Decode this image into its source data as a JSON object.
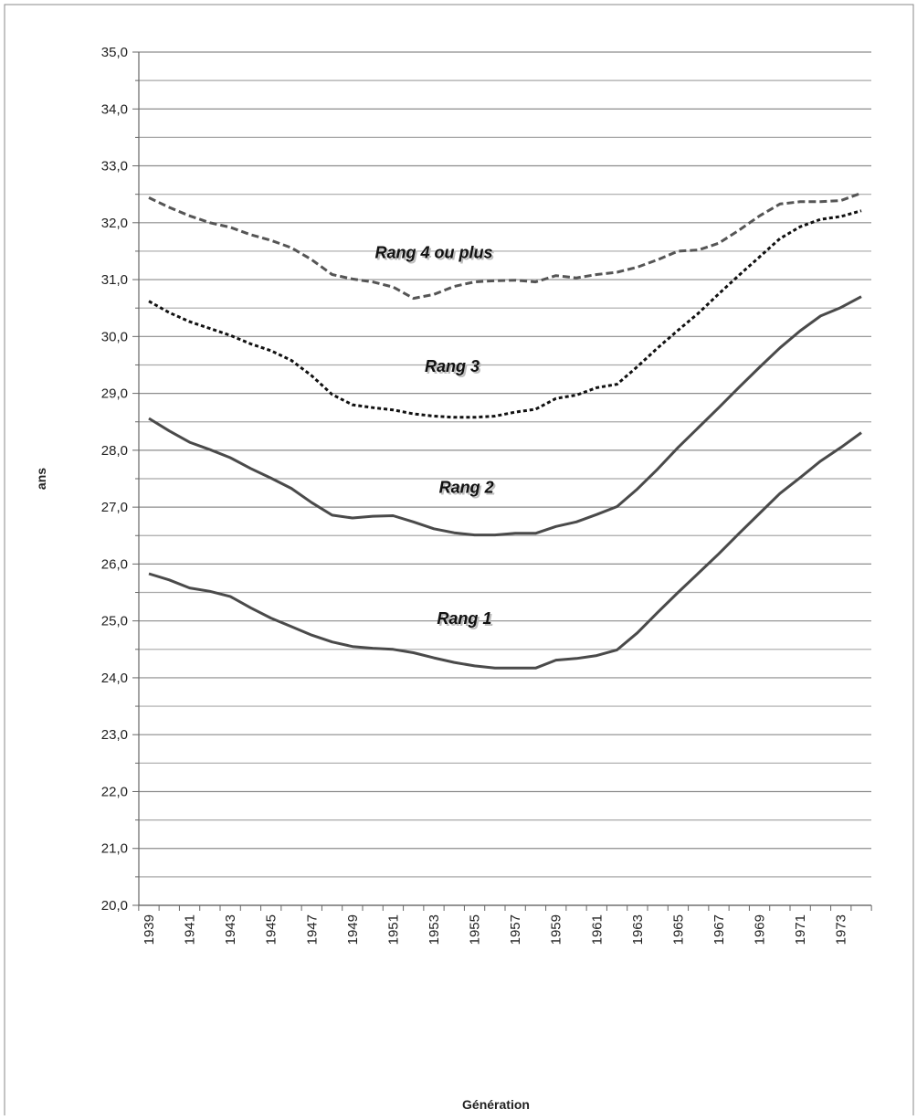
{
  "chart_data": {
    "type": "line",
    "title": "",
    "xlabel": "Génération",
    "ylabel": "ans",
    "x": [
      1939,
      1940,
      1941,
      1942,
      1943,
      1944,
      1945,
      1946,
      1947,
      1948,
      1949,
      1950,
      1951,
      1952,
      1953,
      1954,
      1955,
      1956,
      1957,
      1958,
      1959,
      1960,
      1961,
      1962,
      1963,
      1964,
      1965,
      1966,
      1967,
      1968,
      1969,
      1970,
      1971,
      1972,
      1973,
      1974
    ],
    "x_tick_labels": [
      "1939",
      "1941",
      "1943",
      "1945",
      "1947",
      "1949",
      "1951",
      "1953",
      "1955",
      "1957",
      "1959",
      "1961",
      "1963",
      "1965",
      "1967",
      "1969",
      "1971",
      "1973"
    ],
    "y_tick_labels": [
      "20,0",
      "21,0",
      "22,0",
      "23,0",
      "24,0",
      "25,0",
      "26,0",
      "27,0",
      "28,0",
      "29,0",
      "30,0",
      "31,0",
      "32,0",
      "33,0",
      "34,0",
      "35,0"
    ],
    "ylim": [
      20,
      35
    ],
    "grid": "horizontal, major and minor",
    "legend": "none; series labelled inline",
    "series": [
      {
        "name": "Rang 1",
        "style": "solid",
        "color": "#4a4a4a",
        "values": [
          25.83,
          25.72,
          25.58,
          25.52,
          25.43,
          25.23,
          25.05,
          24.9,
          24.75,
          24.63,
          24.55,
          24.52,
          24.5,
          24.44,
          24.35,
          24.27,
          24.21,
          24.17,
          24.17,
          24.17,
          24.31,
          24.34,
          24.39,
          24.49,
          24.79,
          25.15,
          25.5,
          25.84,
          26.18,
          26.54,
          26.89,
          27.24,
          27.52,
          27.81,
          28.05,
          28.31
        ]
      },
      {
        "name": "Rang 2",
        "style": "solid",
        "color": "#4a4a4a",
        "values": [
          28.56,
          28.34,
          28.14,
          28.01,
          27.87,
          27.68,
          27.51,
          27.33,
          27.08,
          26.86,
          26.81,
          26.84,
          26.85,
          26.74,
          26.62,
          26.55,
          26.51,
          26.51,
          26.54,
          26.54,
          26.66,
          26.74,
          26.87,
          27.01,
          27.32,
          27.67,
          28.05,
          28.4,
          28.75,
          29.11,
          29.46,
          29.8,
          30.1,
          30.36,
          30.51,
          30.7
        ]
      },
      {
        "name": "Rang 3",
        "style": "dotted",
        "color": "#111111",
        "values": [
          30.62,
          30.42,
          30.26,
          30.14,
          30.02,
          29.87,
          29.75,
          29.58,
          29.31,
          28.98,
          28.8,
          28.75,
          28.71,
          28.64,
          28.6,
          28.58,
          28.58,
          28.6,
          28.67,
          28.72,
          28.91,
          28.97,
          29.1,
          29.16,
          29.47,
          29.8,
          30.11,
          30.41,
          30.75,
          31.08,
          31.4,
          31.72,
          31.93,
          32.06,
          32.11,
          32.21
        ]
      },
      {
        "name": "Rang 4 ou plus",
        "style": "dashed",
        "color": "#555555",
        "values": [
          32.44,
          32.27,
          32.12,
          32.0,
          31.92,
          31.79,
          31.69,
          31.56,
          31.35,
          31.09,
          31.01,
          30.96,
          30.87,
          30.67,
          30.74,
          30.88,
          30.96,
          30.98,
          30.99,
          30.96,
          31.07,
          31.03,
          31.09,
          31.13,
          31.22,
          31.35,
          31.5,
          31.52,
          31.64,
          31.87,
          32.12,
          32.33,
          32.37,
          32.37,
          32.39,
          32.52
        ]
      }
    ],
    "inline_labels": [
      {
        "text": "Rang 4 ou plus",
        "series": 3,
        "anchor_x": 1953.0,
        "anchor_y": 31.38
      },
      {
        "text": "Rang 3",
        "series": 2,
        "anchor_x": 1953.9,
        "anchor_y": 29.38
      },
      {
        "text": "Rang 2",
        "series": 1,
        "anchor_x": 1954.6,
        "anchor_y": 27.25
      },
      {
        "text": "Rang 1",
        "series": 0,
        "anchor_x": 1954.5,
        "anchor_y": 24.95
      }
    ]
  }
}
